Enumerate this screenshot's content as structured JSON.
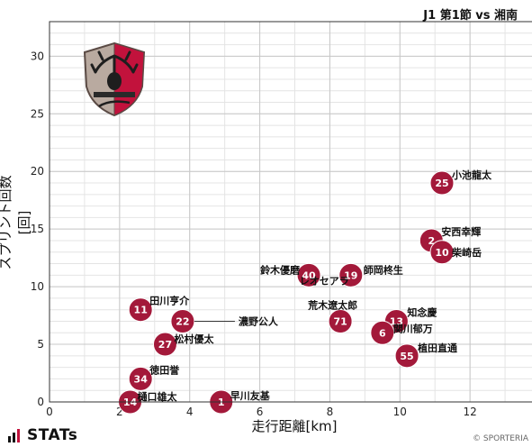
{
  "header": {
    "title": "J1 第1節 vs 湘南"
  },
  "brand": {
    "name": "STATs",
    "copyright": "© SPORTERIA"
  },
  "colors": {
    "marker": "#a3193a",
    "grid": "#c8c8c8",
    "grid_minor": "#e4e4e4",
    "background": "#ffffff"
  },
  "chart_data": {
    "type": "scatter",
    "xlabel": "走行距離[km]",
    "ylabel": "スプリント回数[回]",
    "xlim": [
      0,
      14
    ],
    "ylim": [
      0,
      33
    ],
    "xticks": [
      0,
      2,
      4,
      6,
      8,
      10,
      12,
      14
    ],
    "yticks": [
      0,
      5,
      10,
      15,
      20,
      25,
      30
    ],
    "grid": true,
    "points": [
      {
        "number": "25",
        "name": "小池龍太",
        "x": 11.2,
        "y": 19
      },
      {
        "number": "2",
        "name": "安西幸輝",
        "x": 10.9,
        "y": 14
      },
      {
        "number": "10",
        "name": "柴崎岳",
        "x": 11.2,
        "y": 13
      },
      {
        "number": "40",
        "name": "鈴木優磨",
        "x": 7.4,
        "y": 11
      },
      {
        "number": "30",
        "name": "師岡柊生",
        "x": 8.6,
        "y": 11
      },
      {
        "number": "19",
        "name": "レオセアラ",
        "x": 8.6,
        "y": 11
      },
      {
        "number": "71",
        "name": "荒木遼太郎",
        "x": 8.3,
        "y": 7
      },
      {
        "number": "13",
        "name": "知念慶",
        "x": 9.9,
        "y": 7
      },
      {
        "number": "6",
        "name": "関川郁万",
        "x": 9.5,
        "y": 6
      },
      {
        "number": "55",
        "name": "植田直通",
        "x": 10.2,
        "y": 4
      },
      {
        "number": "11",
        "name": "田川亨介",
        "x": 2.6,
        "y": 8
      },
      {
        "number": "22",
        "name": "濃野公人",
        "x": 3.8,
        "y": 7
      },
      {
        "number": "27",
        "name": "松村優太",
        "x": 3.3,
        "y": 5
      },
      {
        "number": "34",
        "name": "徳田誉",
        "x": 2.6,
        "y": 2
      },
      {
        "number": "14",
        "name": "樋口雄太",
        "x": 2.3,
        "y": 0
      },
      {
        "number": "1",
        "name": "早川友基",
        "x": 4.9,
        "y": 0
      }
    ]
  }
}
